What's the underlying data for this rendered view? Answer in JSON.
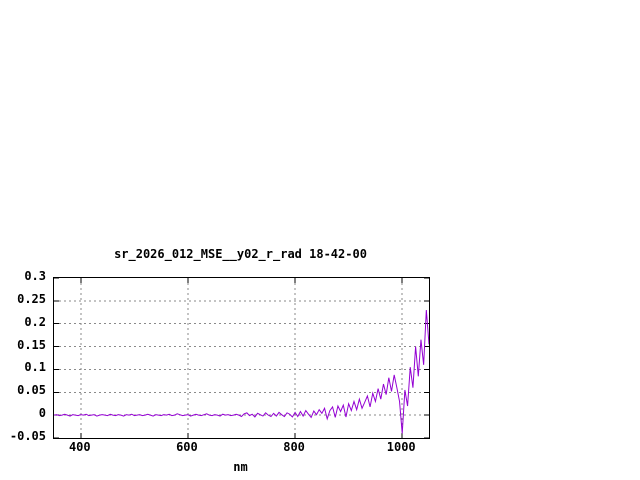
{
  "window": {
    "background": "#ffffff",
    "border_color": "#000000",
    "grid_color": "#8a8a8a"
  },
  "chart_data": {
    "type": "line",
    "title": "sr_2026_012_MSE__y02_r_rad 18-42-00",
    "xlabel": "nm",
    "ylabel": "",
    "xlim": [
      350,
      1050
    ],
    "ylim": [
      -0.05,
      0.3
    ],
    "xticks": [
      400,
      600,
      800,
      1000
    ],
    "xtick_labels": [
      "400",
      "600",
      "800",
      "1000"
    ],
    "yticks": [
      0.3,
      0.25,
      0.2,
      0.15,
      0.1,
      0.05,
      0,
      -0.05
    ],
    "ytick_labels": [
      "0.3",
      "0.25",
      "0.2",
      "0.15",
      "0.1",
      "0.05",
      "0",
      "-0.05"
    ],
    "grid": true,
    "legend_position": "none",
    "line_color": "#9400d3",
    "series": [
      {
        "name": "sr_2026_012_MSE__y02_r_rad",
        "points": [
          [
            350,
            0
          ],
          [
            355,
            0.001
          ],
          [
            360,
            -0.001
          ],
          [
            365,
            0
          ],
          [
            370,
            0.002
          ],
          [
            375,
            0
          ],
          [
            380,
            -0.002
          ],
          [
            385,
            0.001
          ],
          [
            390,
            0
          ],
          [
            395,
            -0.001
          ],
          [
            400,
            0.001
          ],
          [
            405,
            0
          ],
          [
            410,
            0.002
          ],
          [
            415,
            -0.001
          ],
          [
            420,
            0
          ],
          [
            425,
            0.001
          ],
          [
            430,
            -0.002
          ],
          [
            435,
            0
          ],
          [
            440,
            0.001
          ],
          [
            445,
            0
          ],
          [
            450,
            -0.001
          ],
          [
            455,
            0.002
          ],
          [
            460,
            0
          ],
          [
            465,
            -0.001
          ],
          [
            470,
            0.001
          ],
          [
            475,
            0
          ],
          [
            480,
            -0.002
          ],
          [
            485,
            0.001
          ],
          [
            490,
            0
          ],
          [
            495,
            0.002
          ],
          [
            500,
            -0.001
          ],
          [
            505,
            0
          ],
          [
            510,
            0.001
          ],
          [
            515,
            -0.001
          ],
          [
            520,
            0
          ],
          [
            525,
            0.002
          ],
          [
            530,
            0
          ],
          [
            535,
            -0.002
          ],
          [
            540,
            0.001
          ],
          [
            545,
            0
          ],
          [
            550,
            -0.001
          ],
          [
            555,
            0.001
          ],
          [
            560,
            0
          ],
          [
            565,
            0.002
          ],
          [
            570,
            -0.001
          ],
          [
            575,
            0
          ],
          [
            580,
            0.003
          ],
          [
            585,
            0.001
          ],
          [
            590,
            -0.001
          ],
          [
            595,
            0
          ],
          [
            600,
            0.001
          ],
          [
            605,
            -0.002
          ],
          [
            610,
            0
          ],
          [
            615,
            0.002
          ],
          [
            620,
            0
          ],
          [
            625,
            -0.001
          ],
          [
            630,
            0.001
          ],
          [
            635,
            0.003
          ],
          [
            640,
            0
          ],
          [
            645,
            -0.001
          ],
          [
            650,
            0.001
          ],
          [
            655,
            0
          ],
          [
            660,
            -0.002
          ],
          [
            665,
            0.002
          ],
          [
            670,
            0
          ],
          [
            675,
            0.001
          ],
          [
            680,
            -0.001
          ],
          [
            685,
            0
          ],
          [
            690,
            0.002
          ],
          [
            695,
            0
          ],
          [
            700,
            -0.003
          ],
          [
            705,
            0.003
          ],
          [
            710,
            0.005
          ],
          [
            715,
            -0.001
          ],
          [
            720,
            0.002
          ],
          [
            725,
            -0.004
          ],
          [
            730,
            0.004
          ],
          [
            735,
            0.001
          ],
          [
            740,
            -0.002
          ],
          [
            745,
            0.005
          ],
          [
            750,
            0
          ],
          [
            755,
            -0.003
          ],
          [
            760,
            0.004
          ],
          [
            765,
            -0.002
          ],
          [
            770,
            0.006
          ],
          [
            775,
            0.001
          ],
          [
            780,
            -0.003
          ],
          [
            785,
            0.005
          ],
          [
            790,
            0.002
          ],
          [
            795,
            -0.004
          ],
          [
            800,
            0.006
          ],
          [
            805,
            -0.003
          ],
          [
            810,
            0.008
          ],
          [
            815,
            -0.002
          ],
          [
            820,
            0.01
          ],
          [
            825,
            0.002
          ],
          [
            830,
            -0.005
          ],
          [
            835,
            0.009
          ],
          [
            840,
            0.001
          ],
          [
            845,
            0.012
          ],
          [
            850,
            0.004
          ],
          [
            855,
            0.015
          ],
          [
            860,
            -0.008
          ],
          [
            865,
            0.01
          ],
          [
            870,
            0.018
          ],
          [
            875,
            -0.005
          ],
          [
            880,
            0.02
          ],
          [
            885,
            0.008
          ],
          [
            890,
            0.022
          ],
          [
            895,
            -0.004
          ],
          [
            900,
            0.025
          ],
          [
            905,
            0.01
          ],
          [
            910,
            0.03
          ],
          [
            915,
            0.012
          ],
          [
            920,
            0.035
          ],
          [
            925,
            0.015
          ],
          [
            930,
            0.028
          ],
          [
            935,
            0.042
          ],
          [
            940,
            0.018
          ],
          [
            945,
            0.048
          ],
          [
            950,
            0.03
          ],
          [
            955,
            0.058
          ],
          [
            960,
            0.035
          ],
          [
            965,
            0.068
          ],
          [
            970,
            0.045
          ],
          [
            975,
            0.082
          ],
          [
            980,
            0.052
          ],
          [
            985,
            0.088
          ],
          [
            990,
            0.06
          ],
          [
            995,
            0.03
          ],
          [
            1000,
            -0.04
          ],
          [
            1005,
            0.055
          ],
          [
            1010,
            0.02
          ],
          [
            1015,
            0.105
          ],
          [
            1020,
            0.06
          ],
          [
            1025,
            0.15
          ],
          [
            1030,
            0.085
          ],
          [
            1035,
            0.165
          ],
          [
            1040,
            0.11
          ],
          [
            1045,
            0.23
          ],
          [
            1050,
            0.155
          ]
        ]
      }
    ]
  }
}
